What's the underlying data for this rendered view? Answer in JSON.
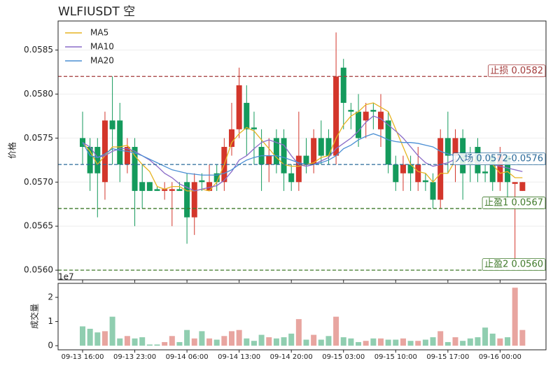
{
  "chart_data": [
    {
      "type": "candlestick",
      "title": "WLFIUSDT  空",
      "ylabel": "价格",
      "up_color": "#d3362b",
      "down_color": "#149a5c",
      "open": [
        0.0575,
        0.0574,
        0.0574,
        0.057,
        0.0577,
        0.0577,
        0.0572,
        0.0574,
        0.057,
        0.057,
        0.05692,
        0.0569,
        0.0569,
        0.05692,
        0.057,
        0.0566,
        0.05702,
        0.0569,
        0.0571,
        0.057,
        0.0574,
        0.0576,
        0.0579,
        0.05762,
        0.0574,
        0.0572,
        0.0575,
        0.0575,
        0.0571,
        0.057,
        0.0573,
        0.0572,
        0.0575,
        0.0575,
        0.0573,
        0.0583,
        0.05782,
        0.0578,
        0.0577,
        0.05782,
        0.0576,
        0.0577,
        0.0572,
        0.0571,
        0.0572,
        0.057,
        0.05702,
        0.057,
        0.0568,
        0.0575,
        0.0573,
        0.0575,
        0.05722,
        0.0574,
        0.05712,
        0.0573,
        0.057,
        0.0573,
        0.05698,
        0.0569
      ],
      "high": [
        0.0578,
        0.0575,
        0.0575,
        0.0578,
        0.0582,
        0.0579,
        0.0575,
        0.0575,
        0.0572,
        0.057,
        0.05695,
        0.057,
        0.057,
        0.057,
        0.0571,
        0.0571,
        0.0571,
        0.0572,
        0.0572,
        0.0575,
        0.0579,
        0.0583,
        0.0581,
        0.0578,
        0.0576,
        0.0575,
        0.0576,
        0.0576,
        0.0572,
        0.0578,
        0.0575,
        0.0576,
        0.0577,
        0.0576,
        0.0587,
        0.0584,
        0.0579,
        0.058,
        0.0579,
        0.0579,
        0.058,
        0.0578,
        0.0573,
        0.0573,
        0.0573,
        0.0574,
        0.0571,
        0.0571,
        0.0576,
        0.0578,
        0.0576,
        0.0576,
        0.0574,
        0.0575,
        0.0572,
        0.0573,
        0.0574,
        0.0573,
        0.057,
        0.057
      ],
      "low": [
        0.0572,
        0.0569,
        0.0566,
        0.0568,
        0.0572,
        0.057,
        0.0571,
        0.0565,
        0.0567,
        0.0569,
        0.0569,
        0.0568,
        0.0565,
        0.0569,
        0.0563,
        0.0564,
        0.0569,
        0.0569,
        0.0569,
        0.0569,
        0.0573,
        0.0575,
        0.0573,
        0.0572,
        0.0569,
        0.057,
        0.0571,
        0.0569,
        0.0569,
        0.0569,
        0.0571,
        0.0571,
        0.0572,
        0.0572,
        0.0572,
        0.0576,
        0.0576,
        0.0574,
        0.0575,
        0.0576,
        0.0574,
        0.0571,
        0.0569,
        0.0569,
        0.0569,
        0.0569,
        0.0569,
        0.0567,
        0.0567,
        0.0571,
        0.057,
        0.0568,
        0.057,
        0.057,
        0.057,
        0.0569,
        0.0569,
        0.0568,
        0.0561,
        0.0569
      ],
      "close": [
        0.0574,
        0.0571,
        0.0571,
        0.0577,
        0.0576,
        0.0572,
        0.0574,
        0.0569,
        0.0569,
        0.0569,
        0.0569,
        0.05692,
        0.05692,
        0.0569,
        0.0566,
        0.057,
        0.057,
        0.057,
        0.057,
        0.0574,
        0.0576,
        0.0581,
        0.0576,
        0.0576,
        0.0572,
        0.0573,
        0.0572,
        0.0571,
        0.057,
        0.0573,
        0.0572,
        0.0575,
        0.0573,
        0.0573,
        0.0582,
        0.0579,
        0.0578,
        0.0575,
        0.0578,
        0.0578,
        0.0578,
        0.0572,
        0.057,
        0.0572,
        0.0571,
        0.0572,
        0.057,
        0.0568,
        0.0575,
        0.0573,
        0.0575,
        0.0571,
        0.0572,
        0.0571,
        0.0571,
        0.057,
        0.0573,
        0.057,
        0.057,
        0.057
      ],
      "ma": [
        {
          "name": "MA5",
          "color": "#e6b422",
          "values": [
            0.05745,
            0.05735,
            0.0572,
            0.0573,
            0.0574,
            0.0574,
            0.05742,
            0.0573,
            0.0572,
            0.05712,
            0.05695,
            0.05692,
            0.05695,
            0.05695,
            0.0569,
            0.0569,
            0.05692,
            0.0569,
            0.057,
            0.0572,
            0.05745,
            0.05755,
            0.05762,
            0.05758,
            0.05748,
            0.05738,
            0.05728,
            0.0572,
            0.05718,
            0.05718,
            0.0572,
            0.05722,
            0.05728,
            0.0573,
            0.0575,
            0.05765,
            0.05775,
            0.0578,
            0.05788,
            0.0579,
            0.05785,
            0.0578,
            0.0576,
            0.0574,
            0.0572,
            0.05712,
            0.0571,
            0.057,
            0.0571,
            0.0571,
            0.05725,
            0.0573,
            0.0573,
            0.0572,
            0.0572,
            0.0572,
            0.0571,
            0.05712,
            0.05705,
            0.05705
          ]
        },
        {
          "name": "MA10",
          "color": "#8a6cc8",
          "values": [
            0.05745,
            0.0574,
            0.05728,
            0.0573,
            0.05735,
            0.05738,
            0.05738,
            0.05735,
            0.0573,
            0.05725,
            0.05718,
            0.0571,
            0.05705,
            0.05698,
            0.05694,
            0.0569,
            0.05692,
            0.05694,
            0.05696,
            0.05702,
            0.05712,
            0.05725,
            0.0573,
            0.05738,
            0.05745,
            0.05748,
            0.05745,
            0.05742,
            0.0573,
            0.0572,
            0.05718,
            0.0572,
            0.05724,
            0.05728,
            0.05738,
            0.05744,
            0.0575,
            0.05758,
            0.05768,
            0.05775,
            0.05772,
            0.05765,
            0.05758,
            0.0575,
            0.0574,
            0.0573,
            0.05722,
            0.05718,
            0.0572,
            0.05722,
            0.05726,
            0.05726,
            0.05724,
            0.05722,
            0.05722,
            0.0572,
            0.05718,
            0.05716,
            0.05714,
            0.05712
          ]
        },
        {
          "name": "MA20",
          "color": "#4a8fd4",
          "values": [
            0.05745,
            0.0573,
            0.05728,
            0.05732,
            0.05738,
            0.05736,
            0.05735,
            0.05733,
            0.0573,
            0.05726,
            0.05722,
            0.05718,
            0.05714,
            0.05712,
            0.0571,
            0.05709,
            0.05708,
            0.05708,
            0.05708,
            0.0571,
            0.05714,
            0.0572,
            0.05725,
            0.05728,
            0.0573,
            0.0573,
            0.0573,
            0.05728,
            0.05725,
            0.05722,
            0.0572,
            0.0572,
            0.05722,
            0.05725,
            0.0573,
            0.05738,
            0.05742,
            0.05748,
            0.05752,
            0.05755,
            0.05752,
            0.05748,
            0.05746,
            0.05745,
            0.05745,
            0.05744,
            0.05742,
            0.0574,
            0.05735,
            0.05732,
            0.0573,
            0.0573,
            0.0573,
            0.0573,
            0.0573,
            0.05728,
            0.05726,
            0.05724,
            0.05722,
            0.0572
          ]
        }
      ],
      "levels": [
        {
          "label": "止损 0.0582",
          "value": 0.0582,
          "color": "#a33a3a"
        },
        {
          "label": "入场 0.0572-0.0576",
          "value": 0.0572,
          "color": "#2a6a9a"
        },
        {
          "label": "止盈1 0.0567",
          "value": 0.0567,
          "color": "#3f7a2a"
        },
        {
          "label": "止盈2 0.0560",
          "value": 0.056,
          "color": "#3f7a2a"
        }
      ],
      "legend": "upper left",
      "ylim": [
        0.05589,
        0.05883
      ],
      "yticks": [
        {
          "value": 0.056,
          "label": "0.0560"
        },
        {
          "value": 0.0565,
          "label": "0.0565"
        },
        {
          "value": 0.057,
          "label": "0.0570"
        },
        {
          "value": 0.0575,
          "label": "0.0575"
        },
        {
          "value": 0.058,
          "label": "0.0580"
        },
        {
          "value": 0.0585,
          "label": "0.0585"
        }
      ],
      "grid": true
    },
    {
      "type": "bar",
      "ylabel": "成交量",
      "offset_text": "1e7",
      "up_color": "#e8a5a0",
      "down_color": "#90ceb0",
      "categories": [
        "09-13 16:00",
        null,
        null,
        null,
        null,
        null,
        null,
        "09-13 23:00",
        null,
        null,
        null,
        null,
        null,
        null,
        "09-14 06:00",
        null,
        null,
        null,
        null,
        null,
        null,
        "09-14 13:00",
        null,
        null,
        null,
        null,
        null,
        null,
        "09-14 20:00",
        null,
        null,
        null,
        null,
        null,
        null,
        "09-15 03:00",
        null,
        null,
        null,
        null,
        null,
        null,
        "09-15 10:00",
        null,
        null,
        null,
        null,
        null,
        null,
        "09-15 17:00",
        null,
        null,
        null,
        null,
        null,
        null,
        "09-16 00:00",
        null,
        null,
        null
      ],
      "values": [
        0.8,
        0.7,
        0.55,
        0.6,
        1.2,
        0.3,
        0.4,
        0.3,
        0.35,
        0.05,
        0.05,
        0.15,
        0.4,
        0.15,
        0.65,
        0.3,
        0.6,
        0.3,
        0.25,
        0.4,
        0.6,
        0.65,
        0.3,
        0.2,
        0.45,
        0.35,
        0.3,
        0.35,
        0.5,
        1.1,
        0.25,
        0.45,
        0.25,
        0.4,
        1.2,
        0.35,
        0.3,
        0.15,
        0.2,
        0.3,
        0.3,
        0.25,
        0.25,
        0.3,
        0.2,
        0.2,
        0.25,
        0.35,
        0.6,
        0.15,
        0.35,
        0.2,
        0.3,
        0.35,
        0.75,
        0.5,
        0.3,
        0.35,
        2.4,
        0.65
      ],
      "ylim": [
        -0.17,
        2.58
      ],
      "yticks": [
        0,
        1,
        2
      ]
    }
  ]
}
